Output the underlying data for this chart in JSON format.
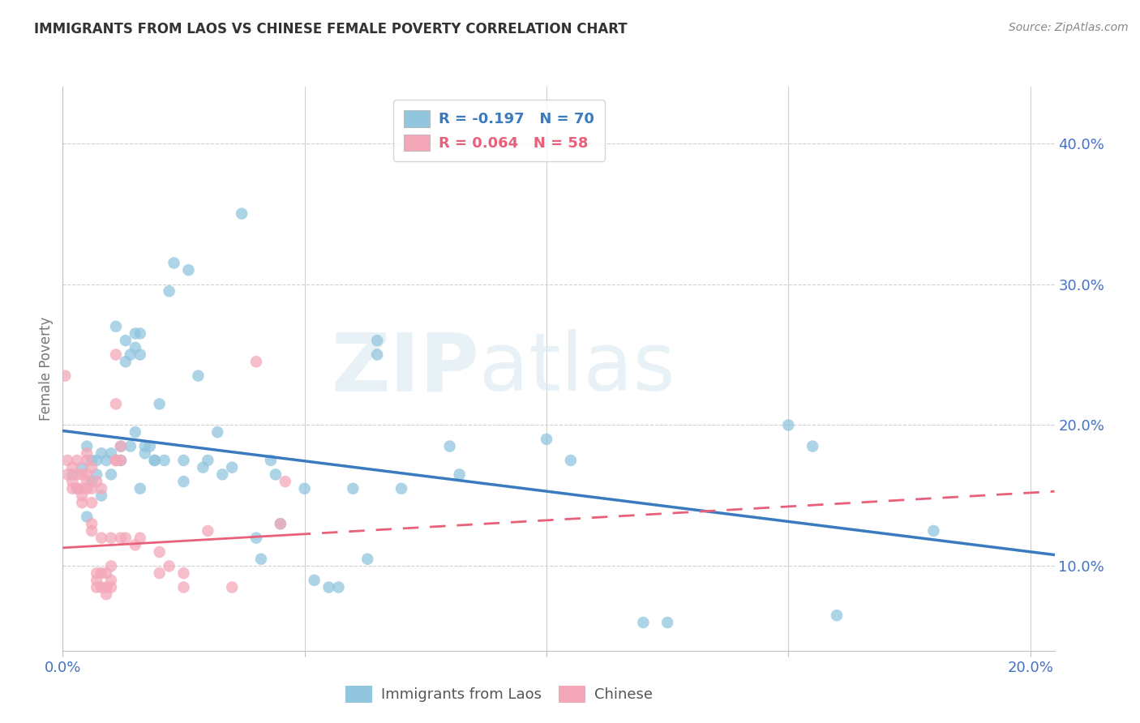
{
  "title": "IMMIGRANTS FROM LAOS VS CHINESE FEMALE POVERTY CORRELATION CHART",
  "source": "Source: ZipAtlas.com",
  "ylabel": "Female Poverty",
  "ytick_labels": [
    "10.0%",
    "20.0%",
    "30.0%",
    "40.0%"
  ],
  "ytick_values": [
    0.1,
    0.2,
    0.3,
    0.4
  ],
  "xlim": [
    0.0,
    0.205
  ],
  "ylim": [
    0.04,
    0.44
  ],
  "legend_blue_r": "R = -0.197",
  "legend_blue_n": "N = 70",
  "legend_pink_r": "R = 0.064",
  "legend_pink_n": "N = 58",
  "watermark_zip": "ZIP",
  "watermark_atlas": "atlas",
  "blue_color": "#92c5de",
  "pink_color": "#f4a7b9",
  "blue_line_color": "#3a7abf",
  "pink_line_color": "#e8607a",
  "title_color": "#333333",
  "source_color": "#888888",
  "tick_color": "#4472c4",
  "ylabel_color": "#777777",
  "grid_color": "#d0d0d0",
  "spine_color": "#c0c0c0",
  "blue_scatter": [
    [
      0.002,
      0.165
    ],
    [
      0.003,
      0.155
    ],
    [
      0.004,
      0.17
    ],
    [
      0.005,
      0.185
    ],
    [
      0.005,
      0.135
    ],
    [
      0.006,
      0.175
    ],
    [
      0.006,
      0.16
    ],
    [
      0.007,
      0.175
    ],
    [
      0.007,
      0.165
    ],
    [
      0.008,
      0.18
    ],
    [
      0.008,
      0.15
    ],
    [
      0.009,
      0.175
    ],
    [
      0.01,
      0.18
    ],
    [
      0.01,
      0.165
    ],
    [
      0.011,
      0.27
    ],
    [
      0.012,
      0.175
    ],
    [
      0.012,
      0.185
    ],
    [
      0.013,
      0.245
    ],
    [
      0.013,
      0.26
    ],
    [
      0.014,
      0.185
    ],
    [
      0.014,
      0.25
    ],
    [
      0.015,
      0.255
    ],
    [
      0.015,
      0.265
    ],
    [
      0.015,
      0.195
    ],
    [
      0.016,
      0.25
    ],
    [
      0.016,
      0.265
    ],
    [
      0.016,
      0.155
    ],
    [
      0.017,
      0.185
    ],
    [
      0.017,
      0.18
    ],
    [
      0.018,
      0.185
    ],
    [
      0.019,
      0.175
    ],
    [
      0.019,
      0.175
    ],
    [
      0.02,
      0.215
    ],
    [
      0.021,
      0.175
    ],
    [
      0.022,
      0.295
    ],
    [
      0.023,
      0.315
    ],
    [
      0.025,
      0.175
    ],
    [
      0.025,
      0.16
    ],
    [
      0.026,
      0.31
    ],
    [
      0.028,
      0.235
    ],
    [
      0.029,
      0.17
    ],
    [
      0.03,
      0.175
    ],
    [
      0.032,
      0.195
    ],
    [
      0.033,
      0.165
    ],
    [
      0.035,
      0.17
    ],
    [
      0.037,
      0.35
    ],
    [
      0.04,
      0.12
    ],
    [
      0.041,
      0.105
    ],
    [
      0.043,
      0.175
    ],
    [
      0.044,
      0.165
    ],
    [
      0.045,
      0.13
    ],
    [
      0.05,
      0.155
    ],
    [
      0.052,
      0.09
    ],
    [
      0.055,
      0.085
    ],
    [
      0.057,
      0.085
    ],
    [
      0.06,
      0.155
    ],
    [
      0.063,
      0.105
    ],
    [
      0.065,
      0.26
    ],
    [
      0.065,
      0.25
    ],
    [
      0.07,
      0.155
    ],
    [
      0.08,
      0.185
    ],
    [
      0.082,
      0.165
    ],
    [
      0.1,
      0.19
    ],
    [
      0.105,
      0.175
    ],
    [
      0.12,
      0.06
    ],
    [
      0.125,
      0.06
    ],
    [
      0.15,
      0.2
    ],
    [
      0.155,
      0.185
    ],
    [
      0.16,
      0.065
    ],
    [
      0.18,
      0.125
    ]
  ],
  "pink_scatter": [
    [
      0.0005,
      0.235
    ],
    [
      0.001,
      0.175
    ],
    [
      0.001,
      0.165
    ],
    [
      0.002,
      0.17
    ],
    [
      0.002,
      0.16
    ],
    [
      0.002,
      0.155
    ],
    [
      0.003,
      0.175
    ],
    [
      0.003,
      0.165
    ],
    [
      0.003,
      0.155
    ],
    [
      0.004,
      0.165
    ],
    [
      0.004,
      0.155
    ],
    [
      0.004,
      0.15
    ],
    [
      0.004,
      0.145
    ],
    [
      0.005,
      0.18
    ],
    [
      0.005,
      0.175
    ],
    [
      0.005,
      0.165
    ],
    [
      0.005,
      0.16
    ],
    [
      0.005,
      0.155
    ],
    [
      0.006,
      0.17
    ],
    [
      0.006,
      0.155
    ],
    [
      0.006,
      0.145
    ],
    [
      0.006,
      0.13
    ],
    [
      0.006,
      0.125
    ],
    [
      0.007,
      0.16
    ],
    [
      0.007,
      0.095
    ],
    [
      0.007,
      0.09
    ],
    [
      0.007,
      0.085
    ],
    [
      0.008,
      0.155
    ],
    [
      0.008,
      0.12
    ],
    [
      0.008,
      0.095
    ],
    [
      0.008,
      0.085
    ],
    [
      0.009,
      0.095
    ],
    [
      0.009,
      0.085
    ],
    [
      0.009,
      0.08
    ],
    [
      0.01,
      0.12
    ],
    [
      0.01,
      0.1
    ],
    [
      0.01,
      0.09
    ],
    [
      0.01,
      0.085
    ],
    [
      0.011,
      0.25
    ],
    [
      0.011,
      0.215
    ],
    [
      0.011,
      0.175
    ],
    [
      0.011,
      0.175
    ],
    [
      0.012,
      0.185
    ],
    [
      0.012,
      0.175
    ],
    [
      0.012,
      0.12
    ],
    [
      0.013,
      0.12
    ],
    [
      0.015,
      0.115
    ],
    [
      0.016,
      0.12
    ],
    [
      0.02,
      0.11
    ],
    [
      0.02,
      0.095
    ],
    [
      0.022,
      0.1
    ],
    [
      0.025,
      0.095
    ],
    [
      0.025,
      0.085
    ],
    [
      0.03,
      0.125
    ],
    [
      0.035,
      0.085
    ],
    [
      0.04,
      0.245
    ],
    [
      0.045,
      0.13
    ],
    [
      0.046,
      0.16
    ]
  ],
  "blue_trend": {
    "x_start": 0.0,
    "x_end": 0.205,
    "y_start": 0.196,
    "y_end": 0.108
  },
  "pink_trend": {
    "x_start": 0.0,
    "x_end": 0.205,
    "y_start": 0.113,
    "y_end": 0.153
  },
  "pink_trend_dashed_start": 0.048
}
